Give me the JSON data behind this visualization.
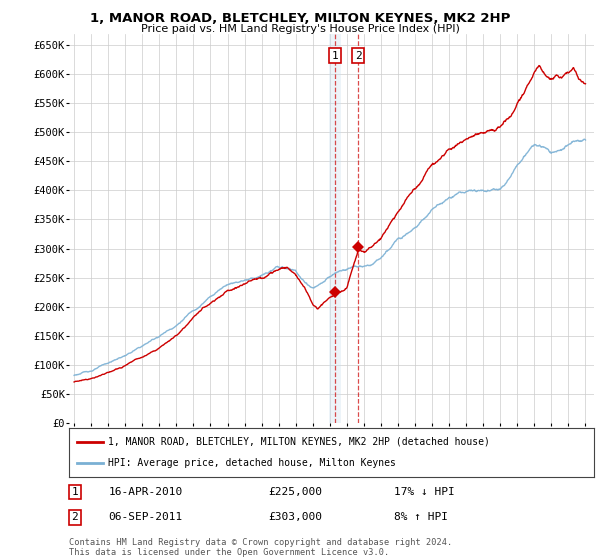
{
  "title": "1, MANOR ROAD, BLETCHLEY, MILTON KEYNES, MK2 2HP",
  "subtitle": "Price paid vs. HM Land Registry's House Price Index (HPI)",
  "ylabel_ticks": [
    "£0",
    "£50K",
    "£100K",
    "£150K",
    "£200K",
    "£250K",
    "£300K",
    "£350K",
    "£400K",
    "£450K",
    "£500K",
    "£550K",
    "£600K",
    "£650K"
  ],
  "ytick_vals": [
    0,
    50000,
    100000,
    150000,
    200000,
    250000,
    300000,
    350000,
    400000,
    450000,
    500000,
    550000,
    600000,
    650000
  ],
  "legend_line1": "1, MANOR ROAD, BLETCHLEY, MILTON KEYNES, MK2 2HP (detached house)",
  "legend_line2": "HPI: Average price, detached house, Milton Keynes",
  "sale1_date": "16-APR-2010",
  "sale1_price": "£225,000",
  "sale1_hpi": "17% ↓ HPI",
  "sale1_year": 2010.29,
  "sale1_value": 225000,
  "sale2_date": "06-SEP-2011",
  "sale2_price": "£303,000",
  "sale2_hpi": "8% ↑ HPI",
  "sale2_year": 2011.67,
  "sale2_value": 303000,
  "copyright_text": "Contains HM Land Registry data © Crown copyright and database right 2024.\nThis data is licensed under the Open Government Licence v3.0.",
  "hpi_color": "#7ab0d4",
  "price_color": "#cc0000",
  "grid_color": "#cccccc",
  "background_color": "#ffffff",
  "vline_color": "#cc0000",
  "span_color": "#cce0f0"
}
